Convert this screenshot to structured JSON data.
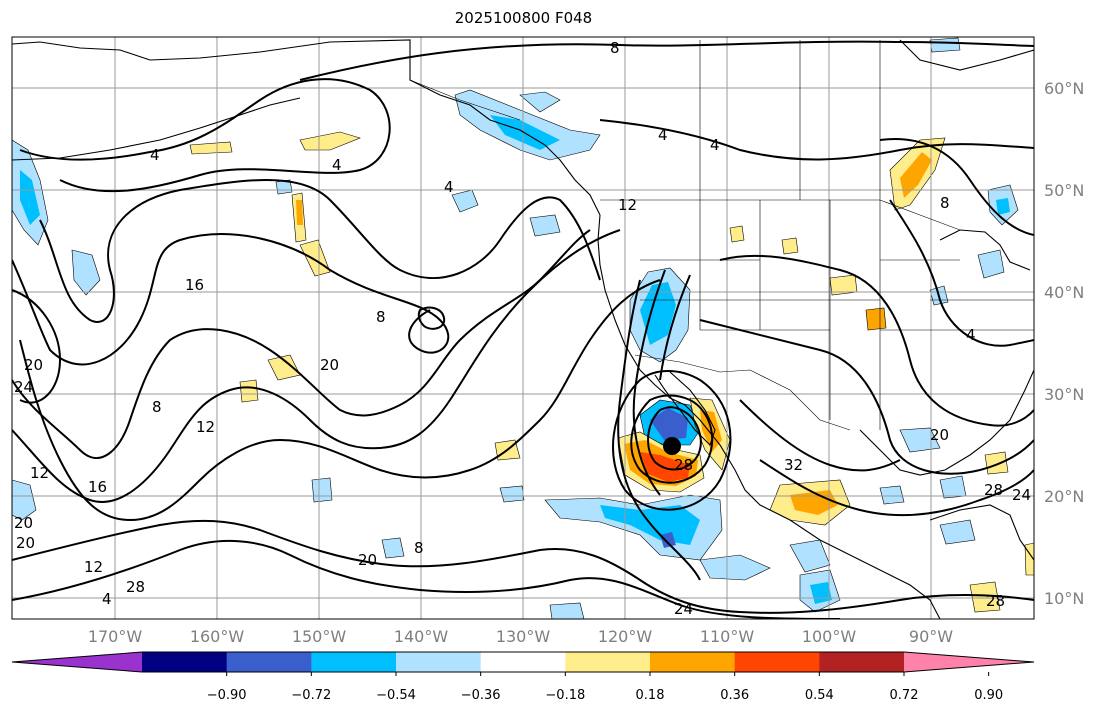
{
  "title": "2025100800 F048",
  "latitude_labels": [
    "60°N",
    "50°N",
    "40°N",
    "30°N",
    "20°N",
    "10°N"
  ],
  "longitude_labels": [
    "170°W",
    "160°W",
    "150°W",
    "140°W",
    "130°W",
    "120°W",
    "110°W",
    "100°W",
    "90°W"
  ],
  "colorbar": {
    "tick_labels": [
      "−0.90",
      "−0.72",
      "−0.54",
      "−0.36",
      "−0.18",
      "0.18",
      "0.36",
      "0.54",
      "0.72",
      "0.90"
    ],
    "colors": [
      "#9a32cd",
      "#000080",
      "#3a5fcd",
      "#00bfff",
      "#b0e2ff",
      "#ffffff",
      "#ffec8b",
      "#ffa500",
      "#ff4500",
      "#b22222",
      "#ff82ab"
    ]
  },
  "contour_labels": [
    "8",
    "4",
    "4",
    "4",
    "4",
    "12",
    "16",
    "8",
    "20",
    "20",
    "8",
    "12",
    "24",
    "20",
    "12",
    "16",
    "20",
    "12",
    "28",
    "4",
    "20",
    "8",
    "32",
    "28",
    "24",
    "20",
    "24",
    "28",
    "4",
    "8",
    "4",
    "28"
  ],
  "shading_colors": {
    "light_blue": "#b0e2ff",
    "blue": "#00bfff",
    "royal_blue": "#3a5fcd",
    "yellow": "#ffec8b",
    "orange": "#ffa500",
    "red_orange": "#ff4500"
  }
}
